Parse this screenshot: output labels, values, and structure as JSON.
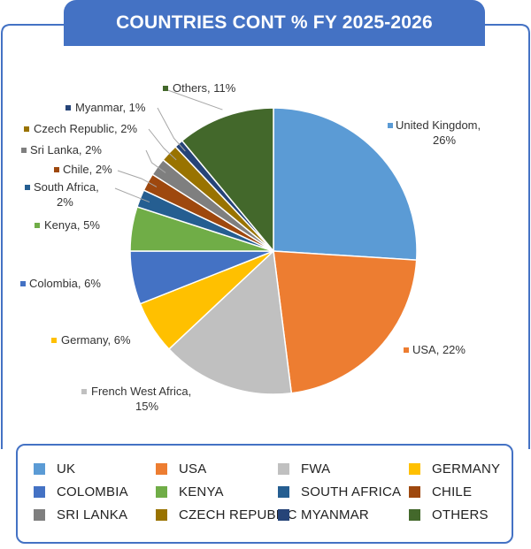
{
  "chart_data": {
    "type": "pie",
    "title": "COUNTRIES CONT % FY 2025-2026",
    "start_angle_deg": 0,
    "direction": "clockwise",
    "slices": [
      {
        "label": "United Kingdom",
        "value": 26,
        "text": "United Kingdom, 26%",
        "color": "#5b9bd5"
      },
      {
        "label": "USA",
        "value": 22,
        "text": "USA, 22%",
        "color": "#ed7d31"
      },
      {
        "label": "French West Africa",
        "value": 15,
        "text": "French West Africa, 15%",
        "color": "#c0c0c0"
      },
      {
        "label": "Germany",
        "value": 6,
        "text": "Germany, 6%",
        "color": "#ffc000"
      },
      {
        "label": "Colombia",
        "value": 6,
        "text": "Colombia, 6%",
        "color": "#4472c4"
      },
      {
        "label": "Kenya",
        "value": 5,
        "text": "Kenya, 5%",
        "color": "#70ad47"
      },
      {
        "label": "South Africa",
        "value": 2,
        "text": "South Africa, 2%",
        "color": "#255e91"
      },
      {
        "label": "Chile",
        "value": 2,
        "text": "Chile, 2%",
        "color": "#9e480e"
      },
      {
        "label": "Sri Lanka",
        "value": 2,
        "text": "Sri Lanka, 2%",
        "color": "#7f7f7f"
      },
      {
        "label": "Czech Republic",
        "value": 2,
        "text": "Czech Republic, 2%",
        "color": "#997300"
      },
      {
        "label": "Myanmar",
        "value": 1,
        "text": "Myanmar, 1%",
        "color": "#264478"
      },
      {
        "label": "Others",
        "value": 11,
        "text": "Others, 11%",
        "color": "#43682b"
      }
    ],
    "legend": {
      "placement": "bottom",
      "entries": [
        {
          "label": "UK",
          "color": "#5b9bd5"
        },
        {
          "label": "USA",
          "color": "#ed7d31"
        },
        {
          "label": "FWA",
          "color": "#c0c0c0"
        },
        {
          "label": "GERMANY",
          "color": "#ffc000"
        },
        {
          "label": "COLOMBIA",
          "color": "#4472c4"
        },
        {
          "label": "KENYA",
          "color": "#70ad47"
        },
        {
          "label": "SOUTH AFRICA",
          "color": "#255e91"
        },
        {
          "label": "CHILE",
          "color": "#9e480e"
        },
        {
          "label": "SRI LANKA",
          "color": "#7f7f7f"
        },
        {
          "label": "CZECH REPUBLIC",
          "color": "#997300"
        },
        {
          "label": "MYANMAR",
          "color": "#264478"
        },
        {
          "label": "OTHERS",
          "color": "#43682b"
        }
      ]
    }
  },
  "colors": {
    "accent": "#4472c4"
  }
}
